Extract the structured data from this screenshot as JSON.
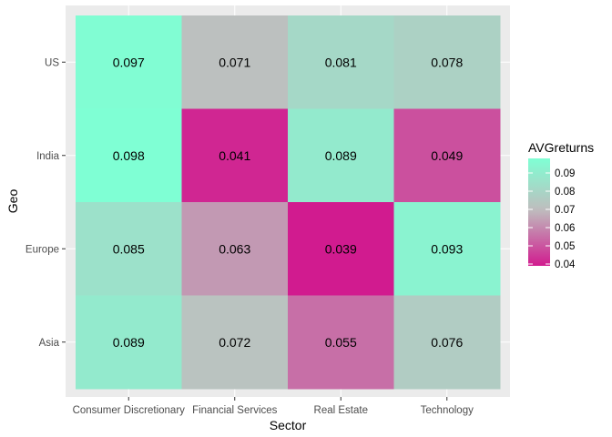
{
  "chart_data": {
    "type": "heatmap",
    "xlabel": "Sector",
    "ylabel": "Geo",
    "x_categories": [
      "Consumer Discretionary",
      "Financial Services",
      "Real Estate",
      "Technology"
    ],
    "y_categories": [
      "Asia",
      "Europe",
      "India",
      "US"
    ],
    "values": [
      {
        "geo": "US",
        "sector": "Consumer Discretionary",
        "value": 0.097
      },
      {
        "geo": "US",
        "sector": "Financial Services",
        "value": 0.071
      },
      {
        "geo": "US",
        "sector": "Real Estate",
        "value": 0.081
      },
      {
        "geo": "US",
        "sector": "Technology",
        "value": 0.078
      },
      {
        "geo": "India",
        "sector": "Consumer Discretionary",
        "value": 0.098
      },
      {
        "geo": "India",
        "sector": "Financial Services",
        "value": 0.041
      },
      {
        "geo": "India",
        "sector": "Real Estate",
        "value": 0.089
      },
      {
        "geo": "India",
        "sector": "Technology",
        "value": 0.049
      },
      {
        "geo": "Europe",
        "sector": "Consumer Discretionary",
        "value": 0.085
      },
      {
        "geo": "Europe",
        "sector": "Financial Services",
        "value": 0.063
      },
      {
        "geo": "Europe",
        "sector": "Real Estate",
        "value": 0.039
      },
      {
        "geo": "Europe",
        "sector": "Technology",
        "value": 0.093
      },
      {
        "geo": "Asia",
        "sector": "Consumer Discretionary",
        "value": 0.089
      },
      {
        "geo": "Asia",
        "sector": "Financial Services",
        "value": 0.072
      },
      {
        "geo": "Asia",
        "sector": "Real Estate",
        "value": 0.055
      },
      {
        "geo": "Asia",
        "sector": "Technology",
        "value": 0.076
      }
    ],
    "value_labels": [
      [
        "0.097",
        "0.071",
        "0.081",
        "0.078"
      ],
      [
        "0.098",
        "0.041",
        "0.089",
        "0.049"
      ],
      [
        "0.085",
        "0.063",
        "0.039",
        "0.093"
      ],
      [
        "0.089",
        "0.072",
        "0.055",
        "0.076"
      ]
    ],
    "label_rows_top_to_bottom": [
      "US",
      "India",
      "Europe",
      "Asia"
    ],
    "legend": {
      "title": "AVGreturns",
      "breaks": [
        0.04,
        0.05,
        0.06,
        0.07,
        0.08,
        0.09
      ],
      "break_labels": [
        "0.04",
        "0.05",
        "0.06",
        "0.07",
        "0.08",
        "0.09"
      ],
      "position": "right"
    },
    "color_scale": {
      "low": "#d11b8f",
      "mid": "#bebebe",
      "high": "#7fffd4",
      "midpoint": 0.07,
      "limits": [
        0.039,
        0.098
      ]
    },
    "panel_background": "#ebebeb",
    "grid": true
  }
}
